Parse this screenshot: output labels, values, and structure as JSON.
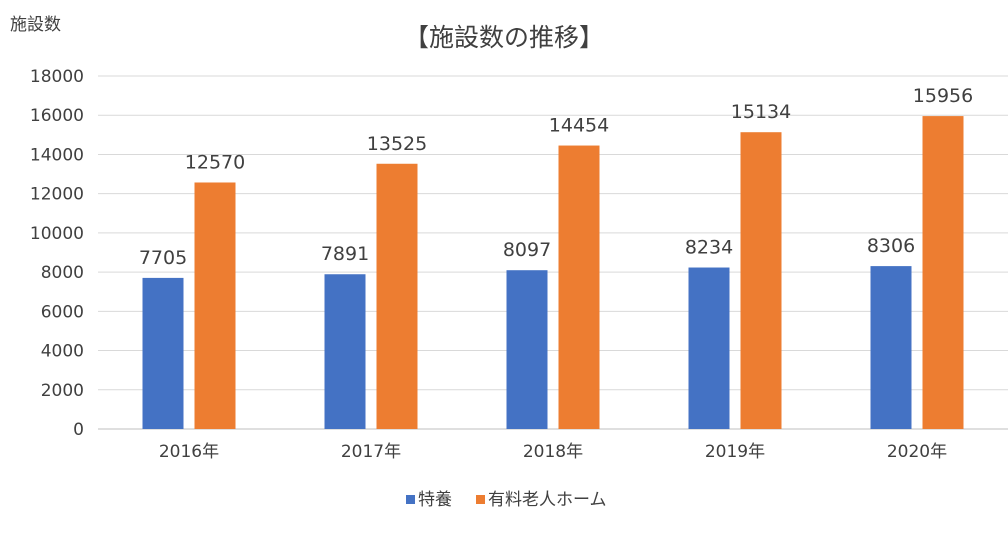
{
  "chart_data": {
    "type": "bar",
    "title": "【施設数の推移】",
    "ylabel": "施設数",
    "xlabel": "",
    "categories": [
      "2016年",
      "2017年",
      "2018年",
      "2019年",
      "2020年"
    ],
    "series": [
      {
        "name": "特養",
        "color": "#4472C4",
        "values": [
          7705,
          7891,
          8097,
          8234,
          8306
        ]
      },
      {
        "name": "有料老人ホーム",
        "color": "#ED7D31",
        "values": [
          12570,
          13525,
          14454,
          15134,
          15956
        ]
      }
    ],
    "ylim": [
      0,
      18000
    ],
    "yticks": [
      0,
      2000,
      4000,
      6000,
      8000,
      10000,
      12000,
      14000,
      16000,
      18000
    ],
    "grid": true,
    "legend": "bottom",
    "data_labels": true
  }
}
